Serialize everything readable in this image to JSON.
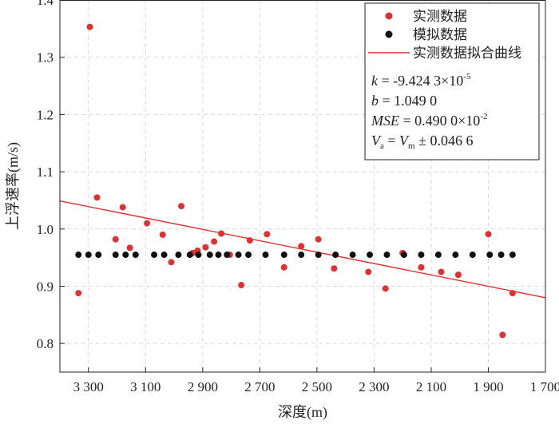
{
  "chart_data": {
    "type": "scatter",
    "xlabel": "深度(m)",
    "ylabel": "上浮速率(m/s)",
    "xlim": [
      3400,
      1700
    ],
    "ylim": [
      0.75,
      1.4
    ],
    "x_reversed": true,
    "x_ticks": [
      3300,
      3100,
      2900,
      2700,
      2500,
      2300,
      2100,
      1900,
      1700
    ],
    "x_tick_labels": [
      "3 300",
      "3 100",
      "2 900",
      "2 700",
      "2 500",
      "2 300",
      "2 100",
      "1 900",
      "1 700"
    ],
    "y_ticks": [
      0.8,
      0.9,
      1.0,
      1.1,
      1.2,
      1.3,
      1.4
    ],
    "y_tick_labels": [
      "0.8",
      "0.9",
      "1.0",
      "1.1",
      "1.2",
      "1.3",
      "1.4"
    ],
    "grid": true,
    "legend_position": "top-right",
    "series": [
      {
        "name": "实测数据",
        "kind": "scatter",
        "color": "#e03030",
        "points": [
          [
            3335,
            0.888
          ],
          [
            3295,
            1.353
          ],
          [
            3270,
            1.055
          ],
          [
            3205,
            0.982
          ],
          [
            3180,
            1.038
          ],
          [
            3155,
            0.967
          ],
          [
            3095,
            1.01
          ],
          [
            3040,
            0.99
          ],
          [
            3010,
            0.942
          ],
          [
            2975,
            1.04
          ],
          [
            2935,
            0.958
          ],
          [
            2918,
            0.962
          ],
          [
            2890,
            0.968
          ],
          [
            2860,
            0.978
          ],
          [
            2835,
            0.992
          ],
          [
            2805,
            0.955
          ],
          [
            2765,
            0.902
          ],
          [
            2735,
            0.98
          ],
          [
            2675,
            0.991
          ],
          [
            2615,
            0.933
          ],
          [
            2555,
            0.97
          ],
          [
            2495,
            0.982
          ],
          [
            2440,
            0.931
          ],
          [
            2320,
            0.925
          ],
          [
            2260,
            0.896
          ],
          [
            2200,
            0.958
          ],
          [
            2135,
            0.933
          ],
          [
            2065,
            0.925
          ],
          [
            2005,
            0.92
          ],
          [
            1900,
            0.991
          ],
          [
            1850,
            0.815
          ],
          [
            1815,
            0.888
          ]
        ]
      },
      {
        "name": "模拟数据",
        "kind": "scatter",
        "color": "#111111",
        "points": [
          [
            3335,
            0.955
          ],
          [
            3300,
            0.955
          ],
          [
            3265,
            0.955
          ],
          [
            3205,
            0.955
          ],
          [
            3170,
            0.955
          ],
          [
            3135,
            0.955
          ],
          [
            3070,
            0.955
          ],
          [
            3035,
            0.955
          ],
          [
            2985,
            0.955
          ],
          [
            2945,
            0.955
          ],
          [
            2915,
            0.955
          ],
          [
            2875,
            0.955
          ],
          [
            2845,
            0.955
          ],
          [
            2815,
            0.955
          ],
          [
            2775,
            0.955
          ],
          [
            2740,
            0.955
          ],
          [
            2680,
            0.955
          ],
          [
            2615,
            0.955
          ],
          [
            2555,
            0.955
          ],
          [
            2495,
            0.955
          ],
          [
            2435,
            0.955
          ],
          [
            2375,
            0.955
          ],
          [
            2315,
            0.955
          ],
          [
            2255,
            0.955
          ],
          [
            2195,
            0.955
          ],
          [
            2135,
            0.955
          ],
          [
            2075,
            0.955
          ],
          [
            2015,
            0.955
          ],
          [
            1955,
            0.955
          ],
          [
            1895,
            0.955
          ],
          [
            1855,
            0.955
          ],
          [
            1815,
            0.955
          ]
        ]
      },
      {
        "name": "实测数据拟合曲线",
        "kind": "line",
        "color": "#e03030",
        "points": [
          [
            3400,
            1.049
          ],
          [
            1700,
            0.88
          ]
        ]
      }
    ],
    "annotations": [
      {
        "var": "k",
        "text": " = -9.424 3×10",
        "sup": "-5"
      },
      {
        "var": "b",
        "text": " = 1.049 0",
        "sup": ""
      },
      {
        "var": "MSE",
        "text": " = 0.490 0×10",
        "sup": "-2"
      },
      {
        "var": "V",
        "var_sub": "a",
        "mid": " = ",
        "var2": "V",
        "var2_sub": "m",
        "text": " ± 0.046 6"
      }
    ]
  }
}
